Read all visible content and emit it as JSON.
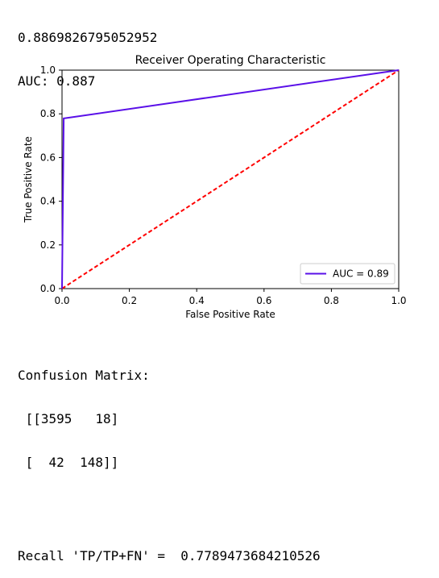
{
  "output_top": {
    "line1": "0.8869826795052952",
    "line2": "AUC: 0.887"
  },
  "chart_data": {
    "type": "line",
    "title": "Receiver Operating Characteristic",
    "xlabel": "False Positive Rate",
    "ylabel": "True Positive Rate",
    "xlim": [
      0,
      1
    ],
    "ylim": [
      0,
      1
    ],
    "xticks": [
      "0.0",
      "0.2",
      "0.4",
      "0.6",
      "0.8",
      "1.0"
    ],
    "yticks": [
      "0.0",
      "0.2",
      "0.4",
      "0.6",
      "0.8",
      "1.0"
    ],
    "grid": false,
    "legend_position": "lower-right",
    "series": [
      {
        "name": "AUC = 0.89",
        "color": "#5a10e8",
        "style": "solid",
        "x": [
          0.0,
          0.00498,
          1.0
        ],
        "y": [
          0.0,
          0.77895,
          1.0
        ]
      },
      {
        "color": "#ff0000",
        "style": "dashed",
        "x": [
          0.0,
          1.0
        ],
        "y": [
          0.0,
          1.0
        ]
      }
    ]
  },
  "output_bottom": {
    "cm_title": "Confusion Matrix:",
    "cm_row1": " [[3595   18]",
    "cm_row2": " [  42  148]]",
    "recall_line": "Recall 'TP/TP+FN' =  0.7789473684210526"
  }
}
